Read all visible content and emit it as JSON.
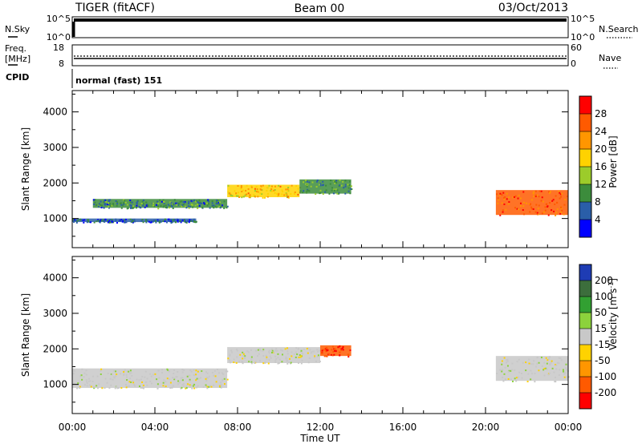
{
  "header": {
    "radar": "TIGER (fitACF)",
    "beam": "Beam 00",
    "date": "03/Oct/2013"
  },
  "summary": {
    "nsky_label": "N.Sky",
    "nsky_ticks": [
      "10^5",
      "10^0"
    ],
    "nsearch_label": "N.Search",
    "nsearch_ticks": [
      "10^5",
      "10^0"
    ],
    "freq_label": "Freq.",
    "freq_unit": "[MHz]",
    "freq_ticks": [
      "18",
      "8"
    ],
    "nave_label": "Nave",
    "nave_ticks": [
      "60",
      "0"
    ],
    "cpid_label": "CPID",
    "cpid_value": "normal (fast) 151"
  },
  "axes": {
    "xlabel": "Time UT",
    "x_ticks": [
      "00:00",
      "04:00",
      "08:00",
      "12:00",
      "16:00",
      "20:00",
      "00:00"
    ],
    "ylabel": "Slant Range [km]",
    "y_ticks": [
      "1000",
      "2000",
      "3000",
      "4000"
    ]
  },
  "colorbars": {
    "power": {
      "label": "Power [dB]",
      "ticks": [
        "28",
        "24",
        "20",
        "16",
        "12",
        "8",
        "4"
      ],
      "colors": [
        "#ff0000",
        "#ff5a00",
        "#ff9600",
        "#ffd200",
        "#9ccc2a",
        "#3c8c3c",
        "#2a5ea8",
        "#0000ff"
      ]
    },
    "velocity": {
      "label": "Velocity [m s",
      "label_sup": "-1",
      "label_end": "]",
      "ticks": [
        "200",
        "100",
        "50",
        "15",
        "-15",
        "-50",
        "-100",
        "-200"
      ],
      "colors": [
        "#1e3cb4",
        "#3c6e3c",
        "#32a032",
        "#8cd23c",
        "#c8c8c8",
        "#ffd200",
        "#ff9600",
        "#ff5a00",
        "#ff0000"
      ]
    }
  },
  "chart_data": {
    "type": "heatmap",
    "title": "TIGER (fitACF)",
    "xlabel": "Time UT",
    "ylabel": "Slant Range [km]",
    "xlim": [
      "00:00",
      "00:00"
    ],
    "ylim": [
      180,
      4600
    ],
    "panels": [
      {
        "name": "Power [dB]",
        "clim": [
          0,
          30
        ],
        "echo_bands": [
          {
            "t_start": 0.0,
            "t_end": 6.0,
            "range_start_km": 900,
            "range_end_km": 1000,
            "power_db": 6
          },
          {
            "t_start": 1.0,
            "t_end": 7.5,
            "range_start_km": 1300,
            "range_end_km": 1550,
            "power_db": 8
          },
          {
            "t_start": 7.5,
            "t_end": 11.0,
            "range_start_km": 1600,
            "range_end_km": 1950,
            "power_db": 18
          },
          {
            "t_start": 11.0,
            "t_end": 13.5,
            "range_start_km": 1700,
            "range_end_km": 2100,
            "power_db": 10
          },
          {
            "t_start": 20.5,
            "t_end": 24.0,
            "range_start_km": 1100,
            "range_end_km": 1800,
            "power_db": 24
          }
        ]
      },
      {
        "name": "Velocity",
        "clim": [
          -200,
          200
        ],
        "echo_bands": [
          {
            "t_start": 0.0,
            "t_end": 7.5,
            "range_start_km": 900,
            "range_end_km": 1450,
            "velocity_ms": 0
          },
          {
            "t_start": 7.5,
            "t_end": 12.0,
            "range_start_km": 1600,
            "range_end_km": 2050,
            "velocity_ms": 0
          },
          {
            "t_start": 12.0,
            "t_end": 13.5,
            "range_start_km": 1800,
            "range_end_km": 2100,
            "velocity_ms": -200
          },
          {
            "t_start": 20.5,
            "t_end": 24.0,
            "range_start_km": 1100,
            "range_end_km": 1800,
            "velocity_ms": 0
          }
        ]
      }
    ]
  }
}
